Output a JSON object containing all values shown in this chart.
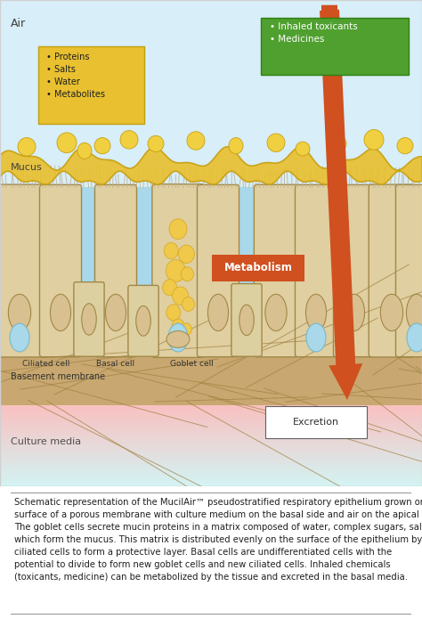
{
  "fig_width": 4.74,
  "fig_height": 6.95,
  "dpi": 100,
  "bg_color": "#ffffff",
  "air_label": "Air",
  "culture_label": "Culture media",
  "basement_label": "Basement membrane",
  "mucus_label": "Mucus",
  "ciliated_label": "Ciliated cell",
  "basal_label": "Basal cell",
  "goblet_label": "Goblet cell",
  "metabolism_label": "Metabolism",
  "excretion_label": "Excretion",
  "inhaled_box_text": "• Inhaled toxicants\n• Medicines",
  "proteins_box_text": "• Proteins\n• Salts\n• Water\n• Metabolites",
  "caption": "Schematic representation of the MucilAir™ pseudostratified respiratory epithelium grown on the surface of a porous membrane with culture medium on the basal side and air on the apical side. The goblet cells secrete mucin proteins in a matrix composed of water, complex sugars, salts which form the mucus. This matrix is distributed evenly on the surface of the epithelium by the ciliated cells to form a protective layer. Basal cells are undifferentiated cells with the potential to divide to form new goblet cells and new ciliated cells. Inhaled chemicals (toxicants, medicine) can be metabolized by the tissue and excreted in the basal media.",
  "caption_fontsize": 7.2,
  "air_color": "#d8eef8",
  "cell_bg_color": "#c8b88a",
  "cell_body_color": "#e0cfa0",
  "cell_outline_color": "#a08848",
  "blue_cytoplasm_color": "#a8d8ea",
  "nucleus_color": "#d8c090",
  "nucleus_outline": "#a08848",
  "basal_cell_color": "#ddd0a0",
  "goblet_vesicle_color": "#f0c84a",
  "goblet_vesicle_outline": "#d0a820",
  "mucus_color": "#e8c030",
  "mucus_outline": "#c8a010",
  "basement_color": "#c8a870",
  "basement_line_color": "#a08040",
  "culture_top_color": "#f8c0c0",
  "culture_bottom_color": "#ffffff",
  "arrow_color": "#d05020",
  "inhaled_box_color": "#50a030",
  "inhaled_box_text_color": "#ffffff",
  "proteins_box_color": "#e8c030",
  "proteins_box_text_color": "#202020",
  "metabolism_box_color": "#d05020",
  "metabolism_text_color": "#ffffff",
  "excretion_box_color": "#ffffff",
  "excretion_outline_color": "#606060"
}
